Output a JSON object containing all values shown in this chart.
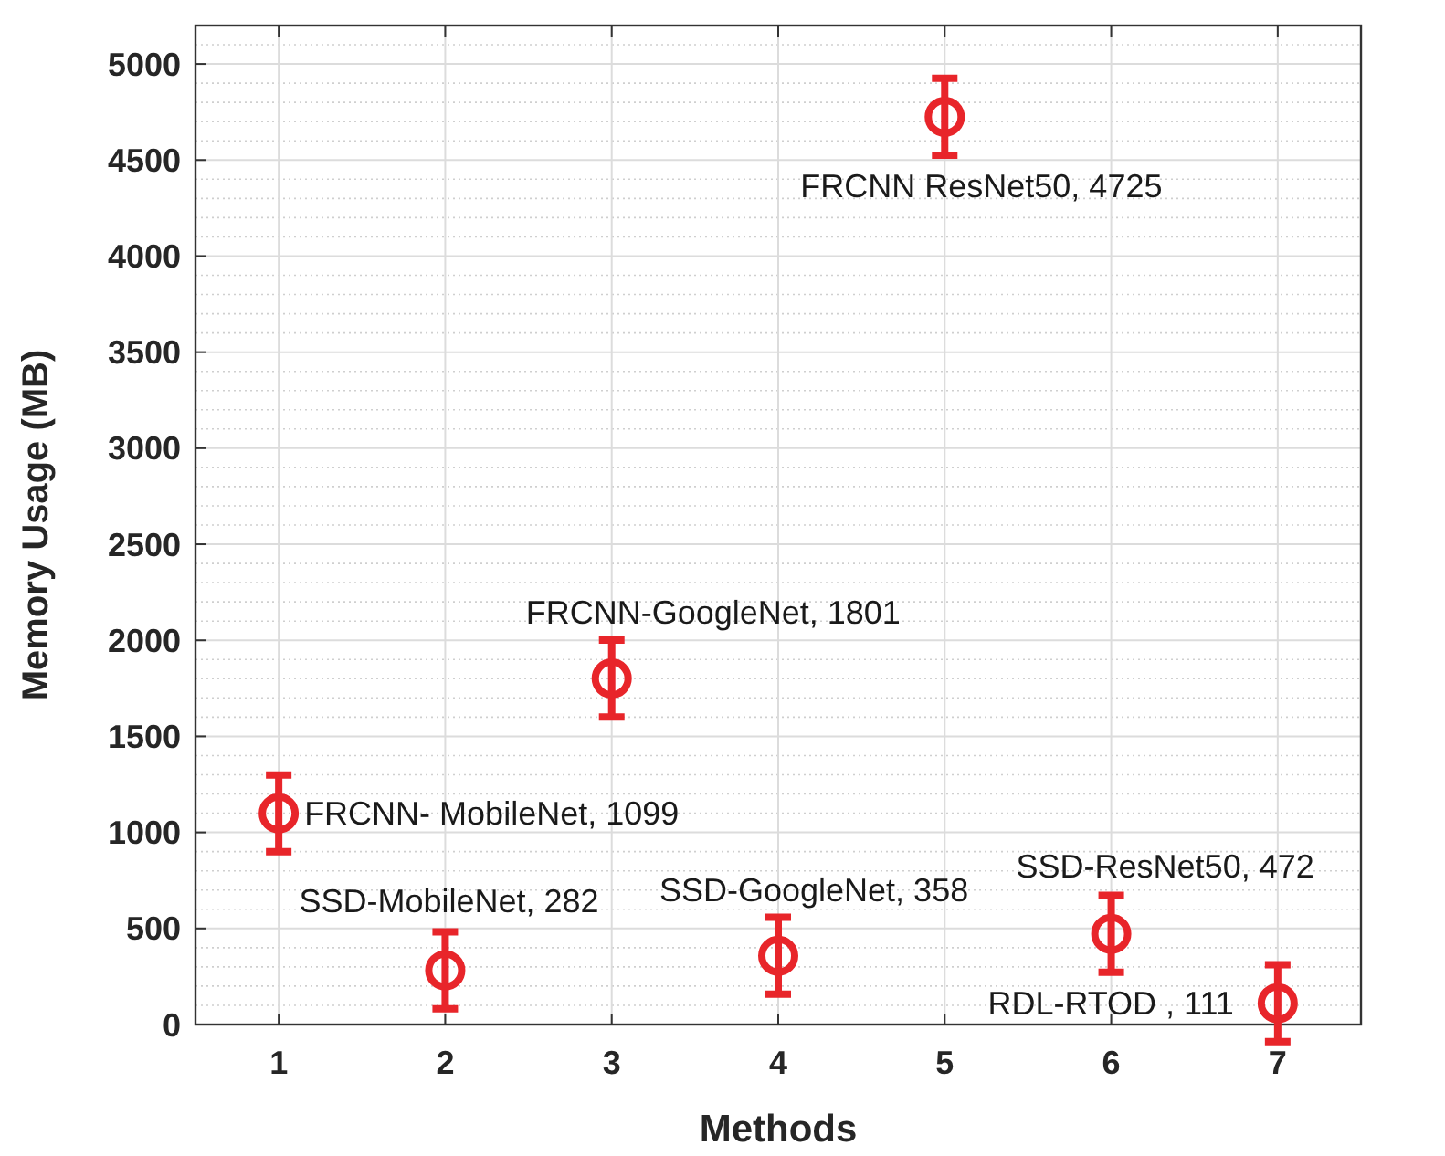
{
  "chart_data": {
    "type": "scatter",
    "xlabel": "Methods",
    "ylabel": "Memory Usage (MB)",
    "x": [
      1,
      2,
      3,
      4,
      5,
      6,
      7
    ],
    "series": [
      {
        "color": "#e8252a",
        "values": [
          1099,
          282,
          1801,
          358,
          4725,
          472,
          111
        ],
        "errors": [
          200,
          200,
          200,
          200,
          200,
          200,
          200
        ]
      }
    ],
    "xlim": [
      0.5,
      7.5
    ],
    "xticks": [
      1,
      2,
      3,
      4,
      5,
      6,
      7
    ],
    "ylim": [
      0,
      5200
    ],
    "yticks": [
      0,
      500,
      1000,
      1500,
      2000,
      2500,
      3000,
      3500,
      4000,
      4500,
      5000
    ],
    "grid": true,
    "marker": "circle",
    "annotations": [
      {
        "text": "FRCNN- MobileNet, 1099",
        "x": 1,
        "y": 1099
      },
      {
        "text": "SSD-MobileNet, 282",
        "x": 2,
        "y": 282
      },
      {
        "text": "FRCNN-GoogleNet, 1801",
        "x": 3,
        "y": 1801
      },
      {
        "text": "SSD-GoogleNet, 358",
        "x": 4,
        "y": 358
      },
      {
        "text": "FRCNN ResNet50, 4725",
        "x": 5,
        "y": 4725
      },
      {
        "text": "SSD-ResNet50, 472",
        "x": 6,
        "y": 472
      },
      {
        "text": "RDL-RTOD , 111",
        "x": 7,
        "y": 111
      }
    ]
  }
}
